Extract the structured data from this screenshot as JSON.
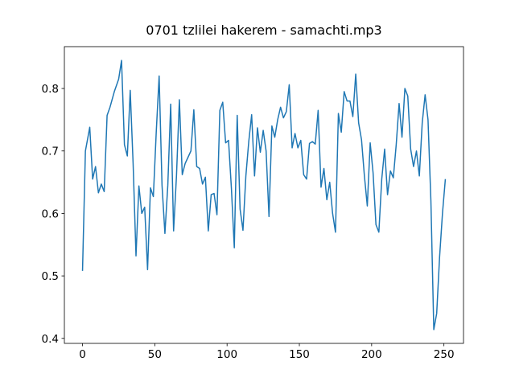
{
  "chart_data": {
    "type": "line",
    "title": "0701 tzlilei hakerem - samachti.mp3",
    "color": "#1f77b4",
    "x": [
      0,
      2,
      5,
      7,
      9,
      11,
      13,
      15,
      17,
      19,
      22,
      25,
      27,
      29,
      31,
      33,
      35,
      37,
      39,
      41,
      43,
      45,
      47,
      49,
      51,
      53,
      55,
      57,
      59,
      61,
      63,
      65,
      67,
      69,
      71,
      73,
      75,
      77,
      79,
      81,
      83,
      85,
      87,
      89,
      91,
      93,
      95,
      97,
      99,
      101,
      103,
      105,
      107,
      109,
      111,
      113,
      115,
      117,
      119,
      121,
      123,
      125,
      127,
      129,
      131,
      133,
      135,
      137,
      139,
      141,
      143,
      145,
      147,
      149,
      151,
      153,
      155,
      157,
      159,
      161,
      163,
      165,
      167,
      169,
      171,
      173,
      175,
      177,
      179,
      181,
      183,
      185,
      187,
      189,
      191,
      193,
      195,
      197,
      199,
      201,
      203,
      205,
      207,
      209,
      211,
      213,
      215,
      217,
      219,
      221,
      223,
      225,
      227,
      229,
      231,
      233,
      235,
      237,
      239,
      241,
      243,
      245,
      247,
      249,
      251
    ],
    "values": [
      0.508,
      0.7,
      0.738,
      0.655,
      0.675,
      0.633,
      0.647,
      0.635,
      0.757,
      0.77,
      0.795,
      0.815,
      0.845,
      0.71,
      0.692,
      0.797,
      0.68,
      0.532,
      0.644,
      0.6,
      0.61,
      0.51,
      0.641,
      0.627,
      0.73,
      0.82,
      0.645,
      0.568,
      0.645,
      0.775,
      0.572,
      0.66,
      0.782,
      0.662,
      0.68,
      0.69,
      0.7,
      0.766,
      0.675,
      0.672,
      0.647,
      0.658,
      0.572,
      0.63,
      0.632,
      0.598,
      0.765,
      0.778,
      0.713,
      0.717,
      0.64,
      0.545,
      0.757,
      0.607,
      0.573,
      0.66,
      0.715,
      0.758,
      0.66,
      0.737,
      0.698,
      0.733,
      0.7,
      0.595,
      0.74,
      0.722,
      0.75,
      0.77,
      0.753,
      0.763,
      0.806,
      0.705,
      0.728,
      0.705,
      0.717,
      0.662,
      0.655,
      0.712,
      0.715,
      0.711,
      0.765,
      0.642,
      0.672,
      0.622,
      0.65,
      0.6,
      0.57,
      0.76,
      0.73,
      0.795,
      0.78,
      0.78,
      0.755,
      0.823,
      0.745,
      0.718,
      0.66,
      0.612,
      0.713,
      0.665,
      0.582,
      0.57,
      0.655,
      0.703,
      0.63,
      0.668,
      0.657,
      0.71,
      0.776,
      0.722,
      0.8,
      0.788,
      0.703,
      0.675,
      0.7,
      0.66,
      0.745,
      0.79,
      0.75,
      0.62,
      0.414,
      0.44,
      0.53,
      0.6,
      0.655
    ],
    "xlim": [
      -12.55,
      263.55
    ],
    "xticks": [
      0,
      50,
      100,
      150,
      200,
      250
    ],
    "ylim": [
      0.392,
      0.867
    ],
    "yticks": [
      0.4,
      0.5,
      0.6,
      0.7,
      0.8
    ]
  }
}
